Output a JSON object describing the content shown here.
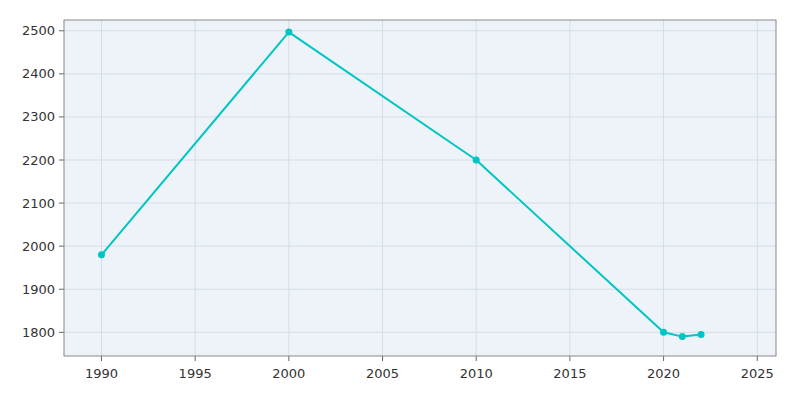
{
  "chart_data": {
    "type": "line",
    "x": [
      1990,
      2000,
      2010,
      2020,
      2021,
      2022
    ],
    "values": [
      1980,
      2497,
      2200,
      1800,
      1790,
      1795
    ],
    "color": "#00C5C5",
    "marker": "circle",
    "xlim": [
      1988,
      2026
    ],
    "ylim": [
      1745,
      2525
    ],
    "xticks": [
      1990,
      1995,
      2000,
      2005,
      2010,
      2015,
      2020,
      2025
    ],
    "yticks": [
      1800,
      1900,
      2000,
      2100,
      2200,
      2300,
      2400,
      2500
    ],
    "grid": true
  }
}
